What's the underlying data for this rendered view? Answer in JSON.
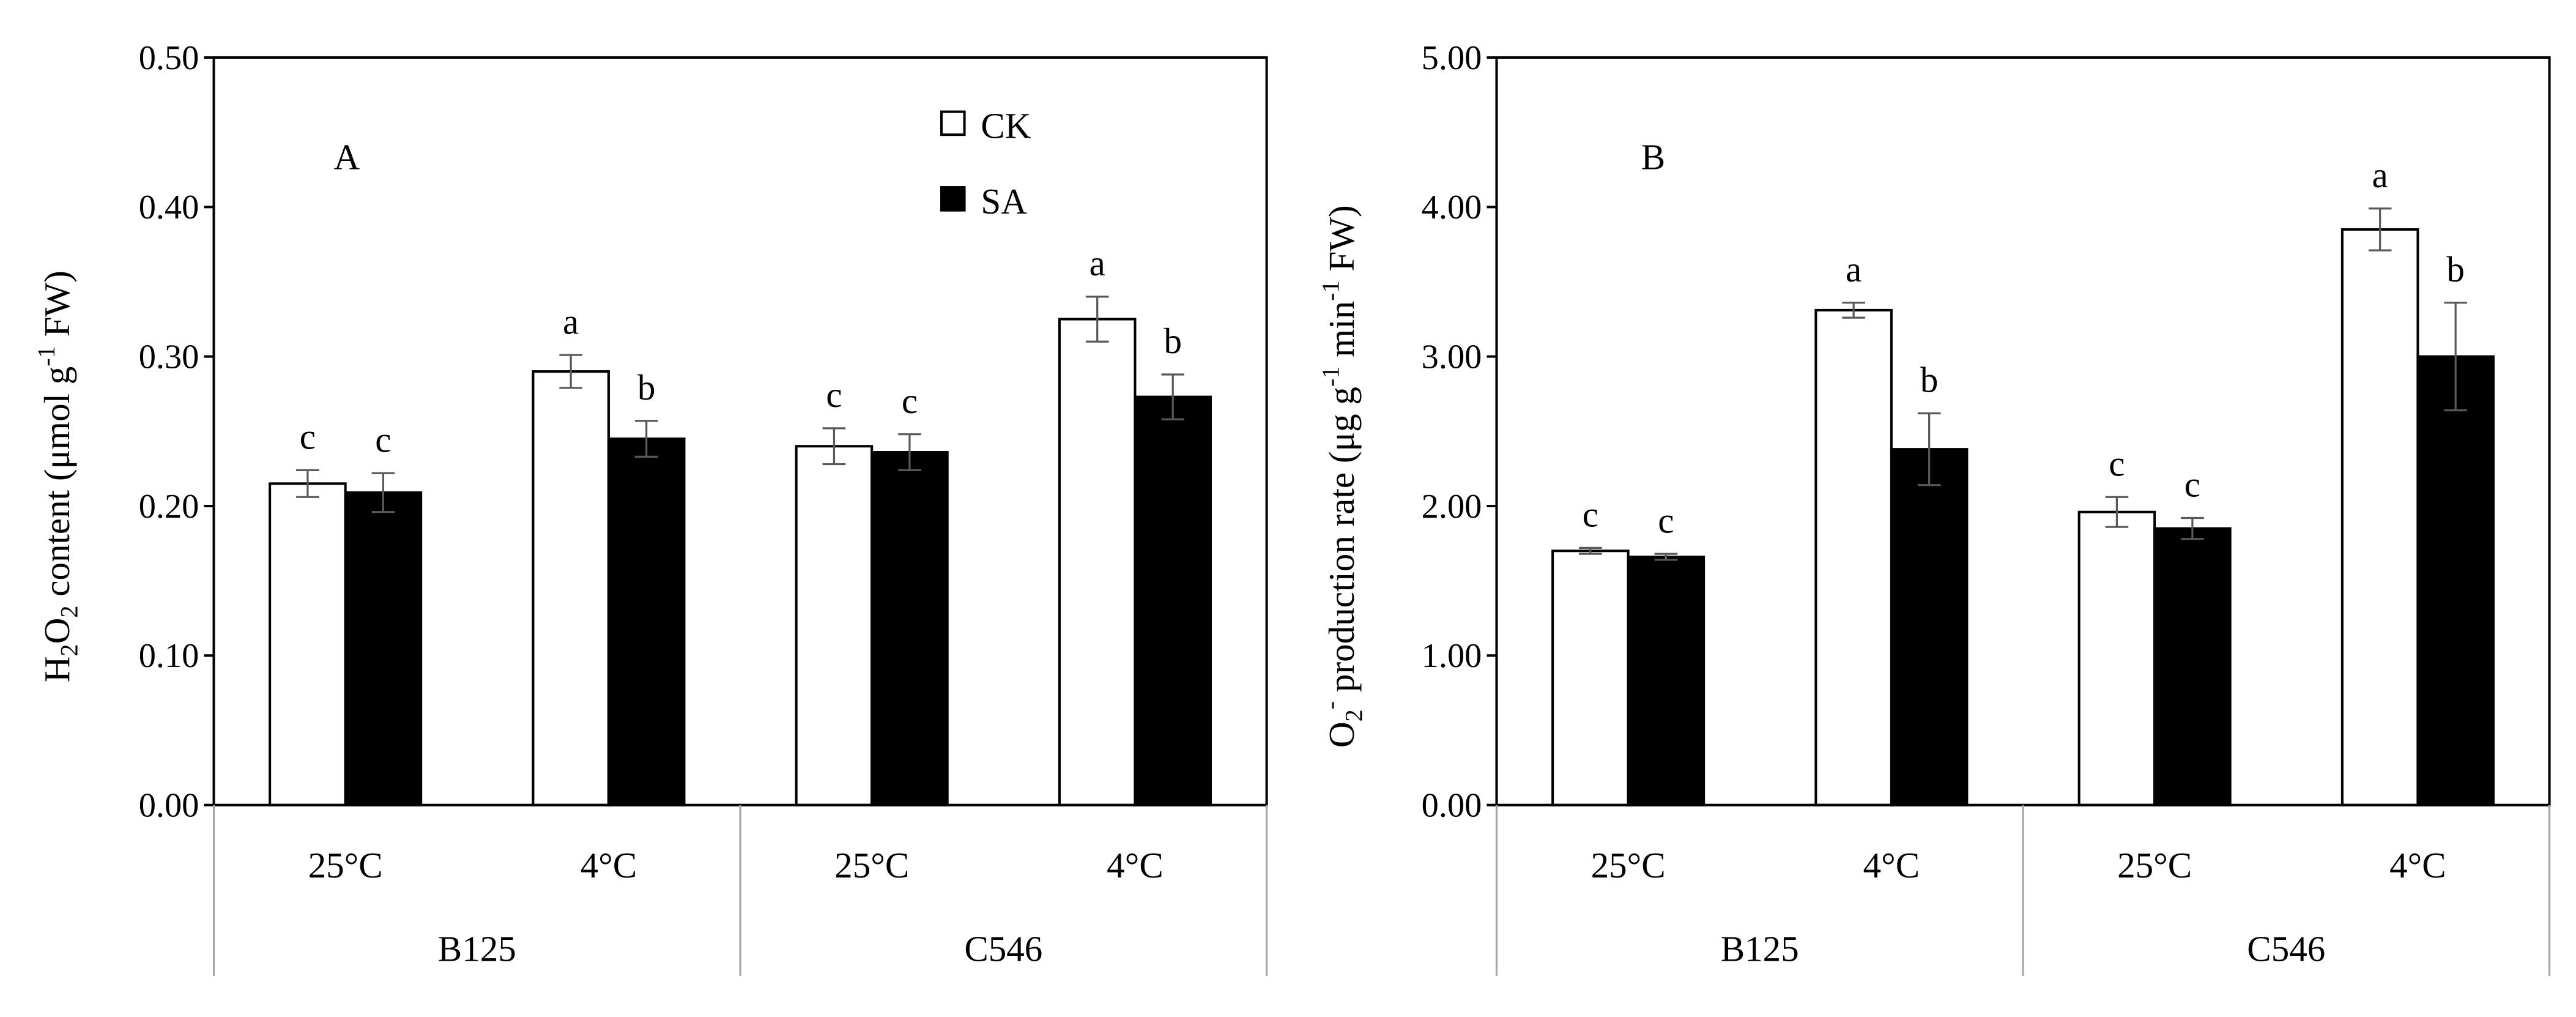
{
  "chart_data": [
    {
      "type": "bar",
      "panel": "A",
      "ylabel_parts": [
        {
          "t": "H"
        },
        {
          "t": "2",
          "s": "sub"
        },
        {
          "t": "O"
        },
        {
          "t": "2",
          "s": "sub"
        },
        {
          "t": " content (μmol g"
        },
        {
          "t": "-1",
          "s": "sup"
        },
        {
          "t": " FW)"
        }
      ],
      "ylim": [
        0,
        0.5
      ],
      "ytick_values": [
        0,
        0.1,
        0.2,
        0.3,
        0.4,
        0.5
      ],
      "yticks": [
        "0.00",
        "0.10",
        "0.20",
        "0.30",
        "0.40",
        "0.50"
      ],
      "categories": [
        "25°C",
        "4°C",
        "25°C",
        "4°C"
      ],
      "groups": [
        "B125",
        "C546"
      ],
      "series": [
        {
          "name": "CK",
          "values": [
            0.215,
            0.29,
            0.24,
            0.325
          ],
          "errors": [
            0.009,
            0.011,
            0.012,
            0.015
          ],
          "letters": [
            "c",
            "a",
            "c",
            "a"
          ]
        },
        {
          "name": "SA",
          "values": [
            0.209,
            0.245,
            0.236,
            0.273
          ],
          "errors": [
            0.013,
            0.012,
            0.012,
            0.015
          ],
          "letters": [
            "c",
            "b",
            "c",
            "b"
          ]
        }
      ],
      "legend": true
    },
    {
      "type": "bar",
      "panel": "B",
      "ylabel_parts": [
        {
          "t": "O"
        },
        {
          "t": "2",
          "s": "sub"
        },
        {
          "t": "-",
          "s": "sup"
        },
        {
          "t": " production rate (μg g"
        },
        {
          "t": "-1",
          "s": "sup"
        },
        {
          "t": " min"
        },
        {
          "t": "-1",
          "s": "sup"
        },
        {
          "t": " FW)"
        }
      ],
      "ylim": [
        0,
        5
      ],
      "ytick_values": [
        0,
        1,
        2,
        3,
        4,
        5
      ],
      "yticks": [
        "0.00",
        "1.00",
        "2.00",
        "3.00",
        "4.00",
        "5.00"
      ],
      "categories": [
        "25°C",
        "4°C",
        "25°C",
        "4°C"
      ],
      "groups": [
        "B125",
        "C546"
      ],
      "series": [
        {
          "name": "CK",
          "values": [
            1.7,
            3.31,
            1.96,
            3.85
          ],
          "errors": [
            0.02,
            0.05,
            0.1,
            0.14
          ],
          "letters": [
            "c",
            "a",
            "c",
            "a"
          ]
        },
        {
          "name": "SA",
          "values": [
            1.66,
            2.38,
            1.85,
            3.0
          ],
          "errors": [
            0.02,
            0.24,
            0.07,
            0.36
          ],
          "letters": [
            "c",
            "b",
            "c",
            "b"
          ]
        }
      ],
      "legend": false
    }
  ],
  "colors": {
    "ck_fill": "#ffffff",
    "sa_fill": "#000000",
    "axis": "#000000",
    "separator": "#a6a6a6",
    "error": "#595959"
  }
}
